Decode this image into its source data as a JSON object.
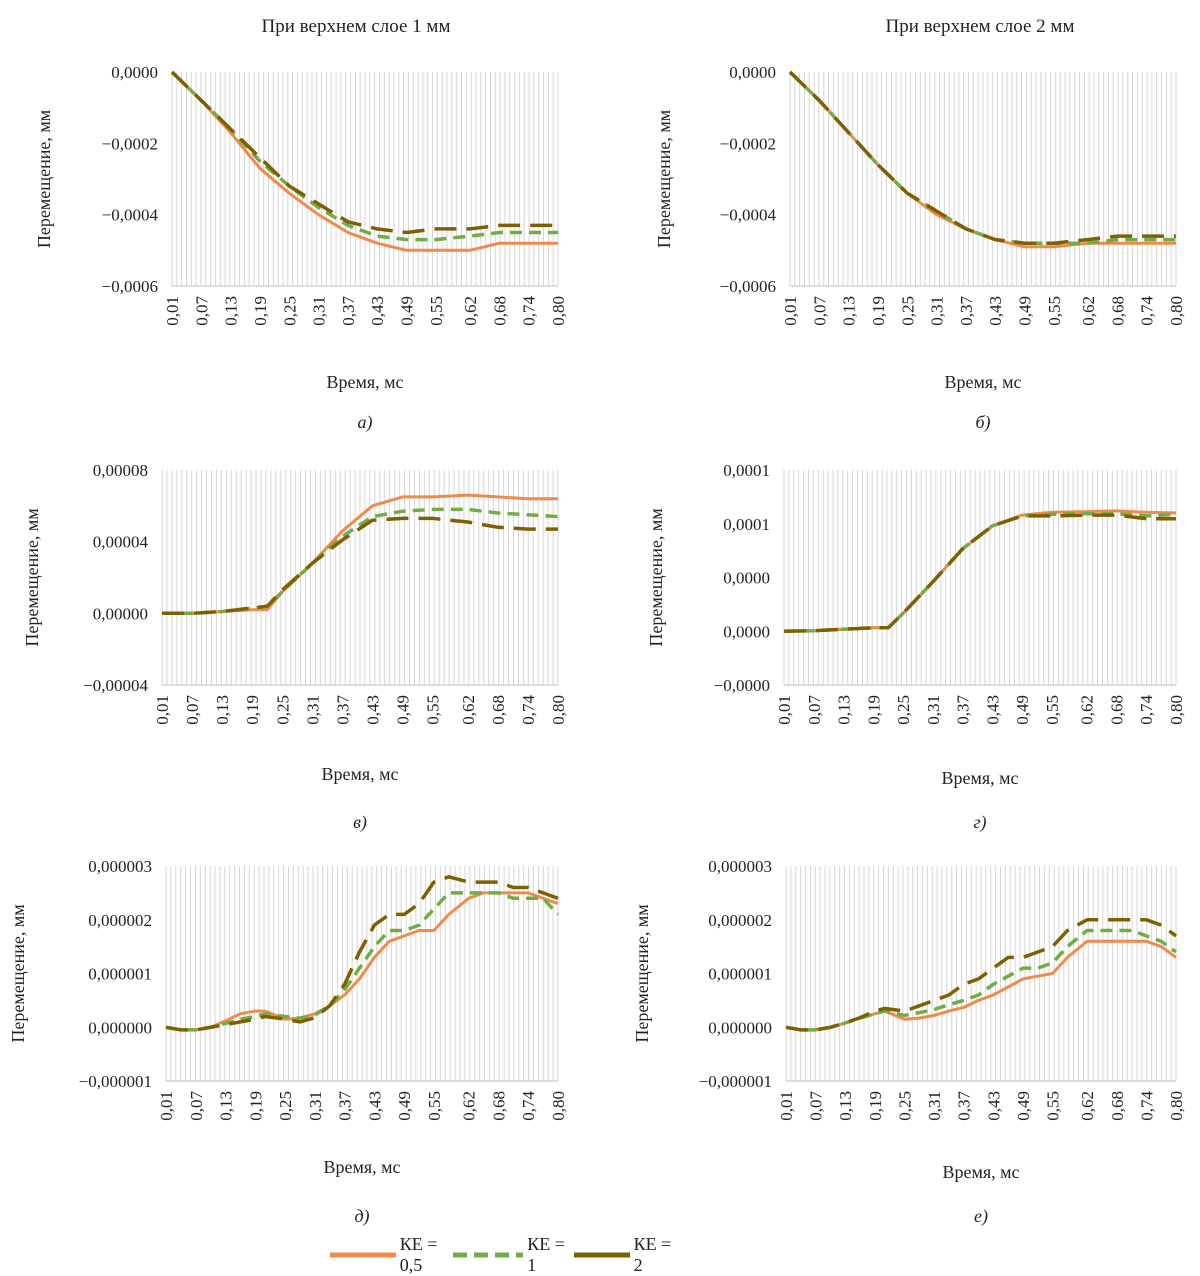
{
  "column_titles": [
    "При верхнем слое 1 мм",
    "При верхнем слое 2 мм"
  ],
  "colors": {
    "KE05": "#F08A4B",
    "KE1": "#70AD47",
    "KE2": "#7F6000",
    "grid": "#d6d6d6"
  },
  "legend": [
    {
      "label": "КЕ = 0,5",
      "color": "#F08A4B",
      "dash": "solid"
    },
    {
      "label": "КЕ = 1",
      "color": "#70AD47",
      "dash": "dashed"
    },
    {
      "label": "КЕ = 2",
      "color": "#7F6000",
      "dash": "longdash"
    }
  ],
  "chart_data": [
    {
      "panel": "а)",
      "type": "line",
      "xlabel": "Время, мс",
      "ylabel": "Перемещение, мм",
      "ylim": [
        -0.0006,
        0.0
      ],
      "yticks": [
        "0,0000",
        "−0,0002",
        "−0,0004",
        "−0,0006"
      ],
      "ytick_values": [
        0.0,
        -0.0002,
        -0.0004,
        -0.0006
      ],
      "x": [
        0.01,
        0.07,
        0.13,
        0.19,
        0.25,
        0.31,
        0.37,
        0.43,
        0.49,
        0.55,
        0.62,
        0.68,
        0.74,
        0.8
      ],
      "xticks": [
        "0,01",
        "0,07",
        "0,13",
        "0,19",
        "0,25",
        "0,31",
        "0,37",
        "0,43",
        "0,49",
        "0,55",
        "0,62",
        "0,68",
        "0,74",
        "0,80"
      ],
      "series": [
        {
          "name": "КЕ = 0,5",
          "values": [
            0.0,
            -8e-05,
            -0.00017,
            -0.00027,
            -0.00034,
            -0.0004,
            -0.00045,
            -0.00048,
            -0.0005,
            -0.0005,
            -0.0005,
            -0.00048,
            -0.00048,
            -0.00048
          ]
        },
        {
          "name": "КЕ = 1",
          "values": [
            0.0,
            -8e-05,
            -0.00016,
            -0.00025,
            -0.00032,
            -0.00038,
            -0.00043,
            -0.00046,
            -0.00047,
            -0.00047,
            -0.00046,
            -0.00045,
            -0.00045,
            -0.00045
          ]
        },
        {
          "name": "КЕ = 2",
          "values": [
            0.0,
            -8e-05,
            -0.00016,
            -0.00024,
            -0.00032,
            -0.00037,
            -0.00042,
            -0.00044,
            -0.00045,
            -0.00044,
            -0.00044,
            -0.00043,
            -0.00043,
            -0.00043
          ]
        }
      ]
    },
    {
      "panel": "б)",
      "type": "line",
      "xlabel": "Время, мс",
      "ylabel": "Перемещение, мм",
      "ylim": [
        -0.0006,
        0.0
      ],
      "yticks": [
        "0,0000",
        "−0,0002",
        "−0,0004",
        "−0,0006"
      ],
      "ytick_values": [
        0.0,
        -0.0002,
        -0.0004,
        -0.0006
      ],
      "x": [
        0.01,
        0.07,
        0.13,
        0.19,
        0.25,
        0.31,
        0.37,
        0.43,
        0.49,
        0.55,
        0.62,
        0.68,
        0.74,
        0.8
      ],
      "xticks": [
        "0,01",
        "0,07",
        "0,13",
        "0,19",
        "0,25",
        "0,31",
        "0,37",
        "0,43",
        "0,49",
        "0,55",
        "0,62",
        "0,68",
        "0,74",
        "0,80"
      ],
      "series": [
        {
          "name": "КЕ = 0,5",
          "values": [
            0.0,
            -8e-05,
            -0.00017,
            -0.00026,
            -0.00034,
            -0.0004,
            -0.00044,
            -0.00047,
            -0.00049,
            -0.00049,
            -0.00048,
            -0.00048,
            -0.00048,
            -0.00048
          ]
        },
        {
          "name": "КЕ = 1",
          "values": [
            0.0,
            -8e-05,
            -0.00017,
            -0.00026,
            -0.00034,
            -0.00039,
            -0.00044,
            -0.00047,
            -0.00048,
            -0.00048,
            -0.00048,
            -0.00047,
            -0.00047,
            -0.00047
          ]
        },
        {
          "name": "КЕ = 2",
          "values": [
            0.0,
            -8e-05,
            -0.00017,
            -0.00026,
            -0.00034,
            -0.00039,
            -0.00044,
            -0.00047,
            -0.00048,
            -0.00048,
            -0.00047,
            -0.00046,
            -0.00046,
            -0.00046
          ]
        }
      ]
    },
    {
      "panel": "в)",
      "type": "line",
      "xlabel": "Время, мс",
      "ylabel": "Перемещение, мм",
      "ylim": [
        -4e-05,
        8e-05
      ],
      "yticks": [
        "0,00008",
        "0,00004",
        "0,00000",
        "−0,00004"
      ],
      "ytick_values": [
        8e-05,
        4e-05,
        0.0,
        -4e-05
      ],
      "x": [
        0.01,
        0.07,
        0.13,
        0.19,
        0.22,
        0.25,
        0.31,
        0.37,
        0.43,
        0.49,
        0.55,
        0.62,
        0.68,
        0.74,
        0.8
      ],
      "xticks": [
        "0,01",
        "0,07",
        "0,13",
        "0,19",
        "0,25",
        "0,31",
        "0,37",
        "0,43",
        "0,49",
        "0,55",
        "0,62",
        "0,68",
        "0,74",
        "0,80"
      ],
      "series": [
        {
          "name": "КЕ = 0,5",
          "values": [
            0.0,
            0.0,
            1e-06,
            2e-06,
            2e-06,
            1.2e-05,
            2.8e-05,
            4.6e-05,
            6e-05,
            6.5e-05,
            6.5e-05,
            6.6e-05,
            6.5e-05,
            6.4e-05,
            6.4e-05
          ]
        },
        {
          "name": "КЕ = 1",
          "values": [
            0.0,
            0.0,
            1e-06,
            3e-06,
            4e-06,
            1.2e-05,
            2.8e-05,
            4.3e-05,
            5.4e-05,
            5.7e-05,
            5.8e-05,
            5.8e-05,
            5.6e-05,
            5.5e-05,
            5.4e-05
          ]
        },
        {
          "name": "КЕ = 2",
          "values": [
            0.0,
            0.0,
            1e-06,
            3e-06,
            4e-06,
            1.3e-05,
            2.8e-05,
            4.1e-05,
            5.2e-05,
            5.3e-05,
            5.3e-05,
            5.1e-05,
            4.8e-05,
            4.7e-05,
            4.7e-05
          ]
        }
      ]
    },
    {
      "panel": "г)",
      "type": "line",
      "xlabel": "Время, мс",
      "ylabel": "Перемещение, мм",
      "ylim": [
        -5e-05,
        0.0001
      ],
      "yticks": [
        "0,0001",
        "0,0001",
        "0,0000",
        "0,0000",
        "−0,0000"
      ],
      "ytick_values": [
        0.0001,
        6.25e-05,
        2.5e-05,
        -1.25e-05,
        -5e-05
      ],
      "x": [
        0.01,
        0.07,
        0.13,
        0.19,
        0.22,
        0.25,
        0.31,
        0.37,
        0.43,
        0.49,
        0.55,
        0.62,
        0.68,
        0.74,
        0.8
      ],
      "xticks": [
        "0,01",
        "0,07",
        "0,13",
        "0,19",
        "0,25",
        "0,31",
        "0,37",
        "0,43",
        "0,49",
        "0,55",
        "0,62",
        "0,68",
        "0,74",
        "0,80"
      ],
      "series": [
        {
          "name": "КЕ = 0,5",
          "values": [
            -1.25e-05,
            -1.21e-05,
            -1.11e-05,
            -1.01e-05,
            -1.01e-05,
            0.0,
            2.2e-05,
            4.5e-05,
            6.1e-05,
            6.85e-05,
            7.05e-05,
            7.1e-05,
            7.15e-05,
            7.05e-05,
            7e-05
          ]
        },
        {
          "name": "КЕ = 1",
          "values": [
            -1.25e-05,
            -1.21e-05,
            -1.11e-05,
            -1.01e-05,
            -1.01e-05,
            0.0,
            2.2e-05,
            4.5e-05,
            6.1e-05,
            6.8e-05,
            6.9e-05,
            6.95e-05,
            6.95e-05,
            6.8e-05,
            6.9e-05
          ]
        },
        {
          "name": "КЕ = 2",
          "values": [
            -1.25e-05,
            -1.21e-05,
            -1.11e-05,
            -1.01e-05,
            -1.01e-05,
            0.0,
            2.2e-05,
            4.5e-05,
            6.1e-05,
            6.8e-05,
            6.8e-05,
            6.85e-05,
            6.85e-05,
            6.6e-05,
            6.6e-05
          ]
        }
      ]
    },
    {
      "panel": "д)",
      "type": "line",
      "xlabel": "Время, мс",
      "ylabel": "Перемещение, мм",
      "ylim": [
        -1e-06,
        3e-06
      ],
      "yticks": [
        "0,000003",
        "0,000002",
        "0,000001",
        "0,000000",
        "−0,000001"
      ],
      "ytick_values": [
        3e-06,
        2e-06,
        1e-06,
        0.0,
        -1e-06
      ],
      "x": [
        0.01,
        0.04,
        0.07,
        0.1,
        0.13,
        0.16,
        0.19,
        0.21,
        0.25,
        0.28,
        0.31,
        0.34,
        0.37,
        0.4,
        0.43,
        0.46,
        0.49,
        0.52,
        0.55,
        0.58,
        0.62,
        0.65,
        0.68,
        0.71,
        0.74,
        0.77,
        0.8
      ],
      "xticks": [
        "0,01",
        "0,07",
        "0,13",
        "0,19",
        "0,25",
        "0,31",
        "0,37",
        "0,43",
        "0,49",
        "0,55",
        "0,62",
        "0,68",
        "0,74",
        "0,80"
      ],
      "series": [
        {
          "name": "КЕ = 0,5",
          "values": [
            0.0,
            -5e-08,
            -5e-08,
            0.0,
            1.2e-07,
            2.5e-07,
            3e-07,
            3e-07,
            1.5e-07,
            1.7e-07,
            2.5e-07,
            4e-07,
            6e-07,
            9e-07,
            1.3e-06,
            1.6e-06,
            1.7e-06,
            1.8e-06,
            1.8e-06,
            2.1e-06,
            2.4e-06,
            2.5e-06,
            2.5e-06,
            2.5e-06,
            2.5e-06,
            2.4e-06,
            2.3e-06
          ]
        },
        {
          "name": "КЕ = 1",
          "values": [
            0.0,
            -5e-08,
            -5e-08,
            0.0,
            7e-08,
            1.5e-07,
            2e-07,
            2.5e-07,
            2e-07,
            1.7e-07,
            2.3e-07,
            4e-07,
            7e-07,
            1.1e-06,
            1.5e-06,
            1.8e-06,
            1.8e-06,
            1.9e-06,
            2.2e-06,
            2.5e-06,
            2.5e-06,
            2.5e-06,
            2.5e-06,
            2.4e-06,
            2.4e-06,
            2.4e-06,
            2.1e-06
          ]
        },
        {
          "name": "КЕ = 2",
          "values": [
            0.0,
            -5e-08,
            -5e-08,
            0.0,
            5e-08,
            1e-07,
            1.5e-07,
            2e-07,
            1.5e-07,
            1e-07,
            1.8e-07,
            4e-07,
            8e-07,
            1.4e-06,
            1.9e-06,
            2.1e-06,
            2.1e-06,
            2.3e-06,
            2.7e-06,
            2.8e-06,
            2.7e-06,
            2.7e-06,
            2.7e-06,
            2.6e-06,
            2.6e-06,
            2.5e-06,
            2.4e-06
          ]
        }
      ]
    },
    {
      "panel": "е)",
      "type": "line",
      "xlabel": "Время, мс",
      "ylabel": "Перемещение, мм",
      "ylim": [
        -1e-06,
        3e-06
      ],
      "yticks": [
        "0,000003",
        "0,000002",
        "0,000001",
        "0,000000",
        "−0,000001"
      ],
      "ytick_values": [
        3e-06,
        2e-06,
        1e-06,
        0.0,
        -1e-06
      ],
      "x": [
        0.01,
        0.04,
        0.07,
        0.1,
        0.13,
        0.16,
        0.19,
        0.21,
        0.25,
        0.28,
        0.31,
        0.34,
        0.37,
        0.4,
        0.43,
        0.46,
        0.49,
        0.52,
        0.55,
        0.58,
        0.62,
        0.65,
        0.68,
        0.71,
        0.74,
        0.77,
        0.8
      ],
      "xticks": [
        "0,01",
        "0,07",
        "0,13",
        "0,19",
        "0,25",
        "0,31",
        "0,37",
        "0,43",
        "0,49",
        "0,55",
        "0,62",
        "0,68",
        "0,74",
        "0,80"
      ],
      "series": [
        {
          "name": "КЕ = 0,5",
          "values": [
            0.0,
            -5e-08,
            -5e-08,
            0.0,
            8e-08,
            1.7e-07,
            2.5e-07,
            3e-07,
            1.5e-07,
            1.7e-07,
            2.2e-07,
            3e-07,
            3.7e-07,
            5e-07,
            6e-07,
            7.5e-07,
            9e-07,
            9.5e-07,
            1e-06,
            1.3e-06,
            1.6e-06,
            1.6e-06,
            1.6e-06,
            1.6e-06,
            1.6e-06,
            1.5e-06,
            1.3e-06
          ]
        },
        {
          "name": "КЕ = 1",
          "values": [
            0.0,
            -5e-08,
            -5e-08,
            0.0,
            8e-08,
            1.7e-07,
            2.5e-07,
            3e-07,
            2.2e-07,
            2.7e-07,
            3.3e-07,
            4.2e-07,
            5e-07,
            6e-07,
            8e-07,
            9.5e-07,
            1.1e-06,
            1.1e-06,
            1.2e-06,
            1.5e-06,
            1.8e-06,
            1.8e-06,
            1.8e-06,
            1.8e-06,
            1.7e-06,
            1.6e-06,
            1.4e-06
          ]
        },
        {
          "name": "КЕ = 2",
          "values": [
            0.0,
            -5e-08,
            -5e-08,
            0.0,
            8e-08,
            1.8e-07,
            3e-07,
            3.5e-07,
            3e-07,
            4e-07,
            5e-07,
            6e-07,
            8e-07,
            9e-07,
            1.1e-06,
            1.3e-06,
            1.3e-06,
            1.4e-06,
            1.5e-06,
            1.8e-06,
            2e-06,
            2e-06,
            2e-06,
            2e-06,
            2e-06,
            1.9e-06,
            1.7e-06
          ]
        }
      ]
    }
  ]
}
